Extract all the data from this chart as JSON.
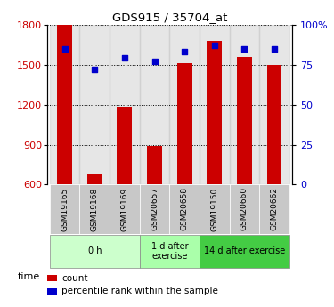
{
  "title": "GDS915 / 35704_at",
  "samples": [
    "GSM19165",
    "GSM19168",
    "GSM19169",
    "GSM20657",
    "GSM20658",
    "GSM19150",
    "GSM20660",
    "GSM20662"
  ],
  "counts": [
    1800,
    678,
    1185,
    890,
    1510,
    1680,
    1555,
    1500
  ],
  "percentiles": [
    85,
    72,
    79,
    77,
    83,
    87,
    85,
    85
  ],
  "ylim_left": [
    600,
    1800
  ],
  "ylim_right": [
    0,
    100
  ],
  "yticks_left": [
    600,
    900,
    1200,
    1500,
    1800
  ],
  "yticks_right": [
    0,
    25,
    50,
    75,
    100
  ],
  "bar_color": "#cc0000",
  "dot_color": "#0000cc",
  "bar_width": 0.5,
  "groups": [
    {
      "label": "0 h",
      "start": 0,
      "end": 3,
      "color": "#ccffcc"
    },
    {
      "label": "1 d after\nexercise",
      "start": 3,
      "end": 5,
      "color": "#aaffaa"
    },
    {
      "label": "14 d after exercise",
      "start": 5,
      "end": 8,
      "color": "#44cc44"
    }
  ],
  "time_label": "time",
  "legend_count": "count",
  "legend_pct": "percentile rank within the sample",
  "tick_color_left": "#cc0000",
  "tick_color_right": "#0000cc",
  "sample_bg": "#c8c8c8"
}
